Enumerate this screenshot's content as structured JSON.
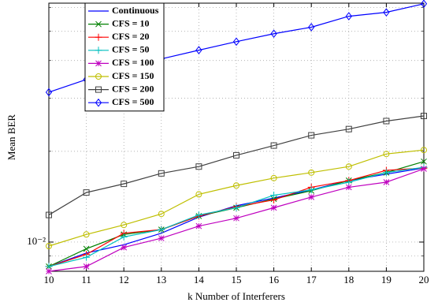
{
  "chart_data": {
    "type": "line",
    "x_label": "k Number of Interferers",
    "y_label": "Mean BER",
    "x": [
      10,
      11,
      12,
      13,
      14,
      15,
      16,
      17,
      18,
      19,
      20
    ],
    "xlim": [
      10,
      20
    ],
    "xticks": [
      10,
      11,
      12,
      13,
      14,
      15,
      16,
      17,
      18,
      19,
      20
    ],
    "ylim": [
      0.008,
      0.062
    ],
    "yticks": [
      {
        "value": 0.01,
        "label": "10⁻²"
      }
    ],
    "yscale": "log",
    "grid": true,
    "minor_grid": true,
    "legend": "upper left",
    "series": [
      {
        "name": "Continuous",
        "color": "#0000ff",
        "marker": "none",
        "values": [
          0.0083,
          0.0092,
          0.0098,
          0.0107,
          0.0121,
          0.0132,
          0.014,
          0.0149,
          0.016,
          0.0168,
          0.0176
        ]
      },
      {
        "name": "CFS = 10",
        "color": "#008000",
        "marker": "x",
        "values": [
          0.0083,
          0.0095,
          0.0106,
          0.011,
          0.0122,
          0.013,
          0.0139,
          0.0148,
          0.016,
          0.017,
          0.0185
        ]
      },
      {
        "name": "CFS = 20",
        "color": "#ff0000",
        "marker": "+",
        "values": [
          0.0083,
          0.0091,
          0.0107,
          0.011,
          0.0122,
          0.0131,
          0.0138,
          0.0152,
          0.016,
          0.0173,
          0.0176
        ]
      },
      {
        "name": "CFS = 50",
        "color": "#00bfbf",
        "marker": "+",
        "values": [
          0.0083,
          0.0089,
          0.0104,
          0.011,
          0.0123,
          0.013,
          0.0143,
          0.0149,
          0.0158,
          0.017,
          0.0177
        ]
      },
      {
        "name": "CFS = 100",
        "color": "#bf00bf",
        "marker": "*",
        "values": [
          0.008,
          0.0083,
          0.0096,
          0.0103,
          0.0113,
          0.012,
          0.013,
          0.0141,
          0.0152,
          0.0158,
          0.0175
        ]
      },
      {
        "name": "CFS = 150",
        "color": "#bfbf00",
        "marker": "o",
        "values": [
          0.0097,
          0.0106,
          0.0114,
          0.0124,
          0.0144,
          0.0154,
          0.0163,
          0.017,
          0.0178,
          0.0196,
          0.0202
        ]
      },
      {
        "name": "CFS = 200",
        "color": "#404040",
        "marker": "s",
        "values": [
          0.0123,
          0.0146,
          0.0156,
          0.0169,
          0.0178,
          0.0194,
          0.0209,
          0.0226,
          0.0237,
          0.0252,
          0.0262
        ]
      },
      {
        "name": "CFS = 500",
        "color": "#0000ff",
        "marker": "d",
        "values": [
          0.0314,
          0.0346,
          0.0384,
          0.0405,
          0.0433,
          0.0462,
          0.0491,
          0.0516,
          0.0561,
          0.0578,
          0.0617
        ]
      }
    ]
  }
}
